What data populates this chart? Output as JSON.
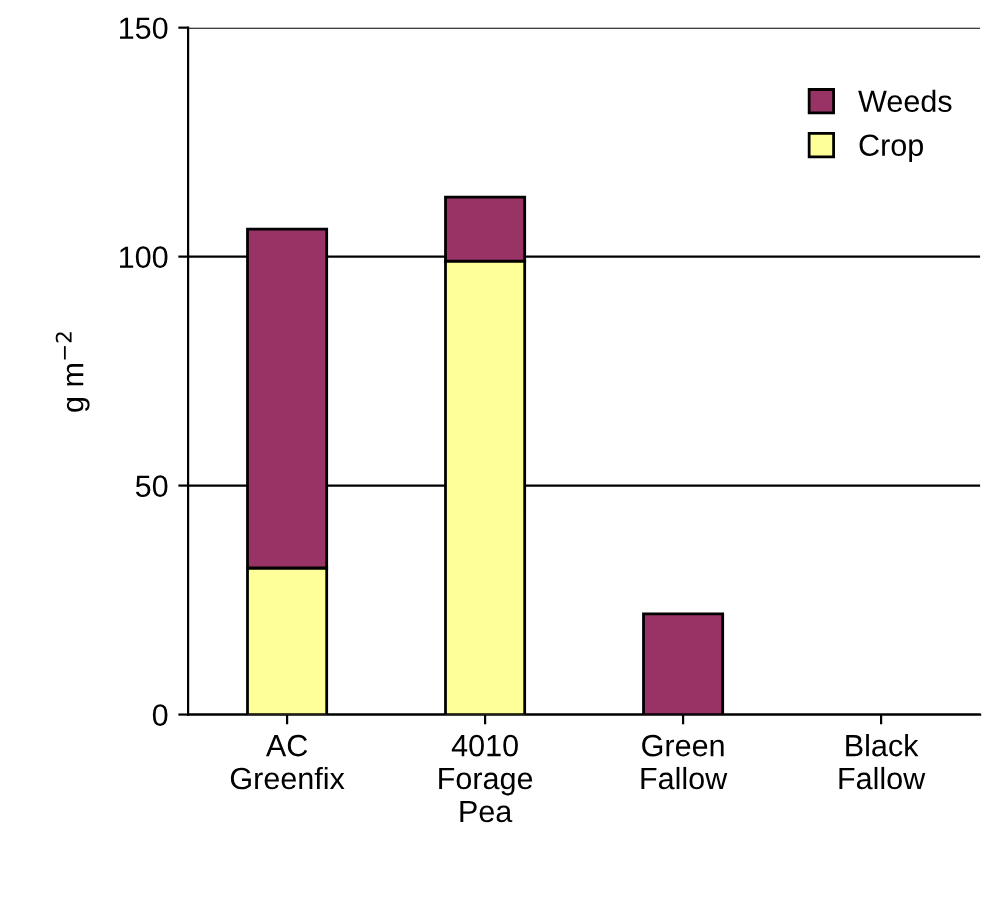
{
  "chart_data": {
    "type": "bar",
    "stacked": true,
    "ylabel": "g m$^{−2}$",
    "categories": [
      "AC\nGreenfix",
      "4010\nForage\nPea",
      "Green\nFallow",
      "Black\nFallow"
    ],
    "series": [
      {
        "name": "Crop",
        "color": "#ffff99",
        "values": [
          32,
          99,
          null,
          null
        ]
      },
      {
        "name": "Weeds",
        "color": "#993366",
        "values": [
          74,
          14,
          22,
          null
        ]
      }
    ],
    "ylim": [
      0,
      150
    ],
    "yticks": [
      0,
      50,
      100,
      150
    ],
    "grid": "y",
    "legend": "top right"
  }
}
